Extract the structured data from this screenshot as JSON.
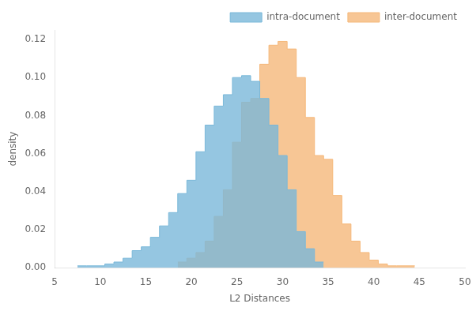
{
  "chart_data": {
    "type": "histogram",
    "xlabel": "L2 Distances",
    "ylabel": "density",
    "xlim": [
      5,
      50
    ],
    "ylim": [
      0,
      0.125
    ],
    "xticks": [
      5,
      10,
      15,
      20,
      25,
      30,
      35,
      40,
      45,
      50
    ],
    "yticks": [
      {
        "value": 0,
        "label": "0.00"
      },
      0.02,
      0.04,
      0.06,
      0.08,
      {
        "value": 0.1,
        "label": "0.10"
      },
      0.12
    ],
    "grid": false,
    "legend": "upper right",
    "series": [
      {
        "name": "intra-document",
        "color": "#7ab8d9",
        "bins": [
          7.5,
          8.5,
          9.5,
          10.5,
          11.5,
          12.5,
          13.5,
          14.5,
          15.5,
          16.5,
          17.5,
          18.5,
          19.5,
          20.5,
          21.5,
          22.5,
          23.5,
          24.5,
          25.5,
          26.5,
          27.5,
          28.5,
          29.5,
          30.5,
          31.5,
          32.5,
          33.5,
          34.5
        ],
        "values": [
          0.001,
          0.001,
          0.001,
          0.002,
          0.003,
          0.005,
          0.009,
          0.011,
          0.016,
          0.022,
          0.029,
          0.039,
          0.046,
          0.061,
          0.075,
          0.085,
          0.091,
          0.1,
          0.101,
          0.098,
          0.089,
          0.075,
          0.059,
          0.041,
          0.019,
          0.01,
          0.003
        ]
      },
      {
        "name": "inter-document",
        "color": "#f5b87a",
        "bins": [
          18.5,
          19.5,
          20.5,
          21.5,
          22.5,
          23.5,
          24.5,
          25.5,
          26.5,
          27.5,
          28.5,
          29.5,
          30.5,
          31.5,
          32.5,
          33.5,
          34.5,
          35.5,
          36.5,
          37.5,
          38.5,
          39.5,
          40.5,
          41.5,
          42.5,
          43.5,
          44.5
        ],
        "values": [
          0.003,
          0.005,
          0.008,
          0.014,
          0.027,
          0.041,
          0.066,
          0.087,
          0.089,
          0.107,
          0.117,
          0.119,
          0.115,
          0.1,
          0.079,
          0.059,
          0.057,
          0.038,
          0.023,
          0.014,
          0.008,
          0.004,
          0.002,
          0.001,
          0.001,
          0.001
        ]
      }
    ]
  }
}
